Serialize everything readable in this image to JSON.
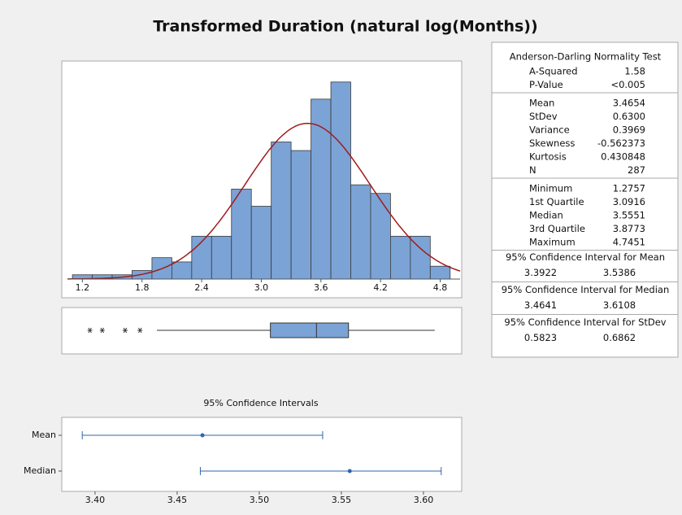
{
  "title": "Transformed Duration (natural log(Months))",
  "chart_data": [
    {
      "type": "histogram",
      "bins": [
        1.1,
        1.3,
        1.5,
        1.7,
        1.9,
        2.1,
        2.3,
        2.5,
        2.7,
        2.9,
        3.1,
        3.3,
        3.5,
        3.7,
        3.9,
        4.1,
        4.3,
        4.5,
        4.7,
        4.9
      ],
      "counts": [
        1,
        1,
        1,
        2,
        5,
        4,
        10,
        10,
        21,
        17,
        32,
        30,
        42,
        46,
        22,
        20,
        10,
        10,
        3
      ],
      "color": "#7ba3d6",
      "fit_color": "#a01c1c",
      "xlim": [
        1.05,
        5.0
      ],
      "ylim": [
        0,
        49
      ],
      "xticks": [
        1.2,
        1.8,
        2.4,
        {
          "value": 3,
          "label": "3.0"
        },
        3.6,
        4.2,
        4.8
      ]
    },
    {
      "type": "boxplot",
      "outliers": [
        1.2757,
        1.4,
        1.63,
        1.78
      ],
      "whisker_low": 1.95,
      "color": "#7ba3d6"
    },
    {
      "type": "interval",
      "title": "95% Confidence Intervals",
      "categories": [
        "Mean",
        "Median"
      ],
      "xlim": [
        3.3827,
        3.6223
      ],
      "color": "#2f66ab",
      "xticks": [
        {
          "value": 3.4,
          "label": "3.40"
        },
        {
          "value": 3.45,
          "label": "3.45"
        },
        {
          "value": 3.5,
          "label": "3.50"
        },
        {
          "value": 3.55,
          "label": "3.55"
        },
        {
          "value": 3.6,
          "label": "3.60"
        }
      ]
    }
  ],
  "summary": {
    "sections": [
      {
        "title": "Anderson-Darling Normality Test",
        "rows": [
          {
            "name": "A-Squared",
            "value": 1.58
          },
          {
            "name": "P-Value",
            "label": "<0.005"
          }
        ]
      },
      {
        "rows": [
          {
            "name": "Mean",
            "value": 3.4654
          },
          {
            "name": "StDev",
            "value": 0.63,
            "label": "0.6300"
          },
          {
            "name": "Variance",
            "value": 0.3969
          },
          {
            "name": "Skewness",
            "value": -0.562373
          },
          {
            "name": "Kurtosis",
            "value": 0.430848
          },
          {
            "name": "N",
            "value": 287
          }
        ]
      },
      {
        "rows": [
          {
            "name": "Minimum",
            "value": 1.2757
          },
          {
            "name": "1st Quartile",
            "value": 3.0916
          },
          {
            "name": "Median",
            "value": 3.5551
          },
          {
            "name": "3rd Quartile",
            "value": 3.8773
          },
          {
            "name": "Maximum",
            "value": 4.7451
          }
        ]
      }
    ],
    "intervals": [
      {
        "title": "95% Confidence Interval for Mean",
        "low": 3.3922,
        "high": 3.5386
      },
      {
        "title": "95% Confidence Interval for Median",
        "low": 3.4641,
        "high": 3.6108
      },
      {
        "title": "95% Confidence Interval for StDev",
        "low": 0.5823,
        "high": 0.6862
      }
    ]
  }
}
